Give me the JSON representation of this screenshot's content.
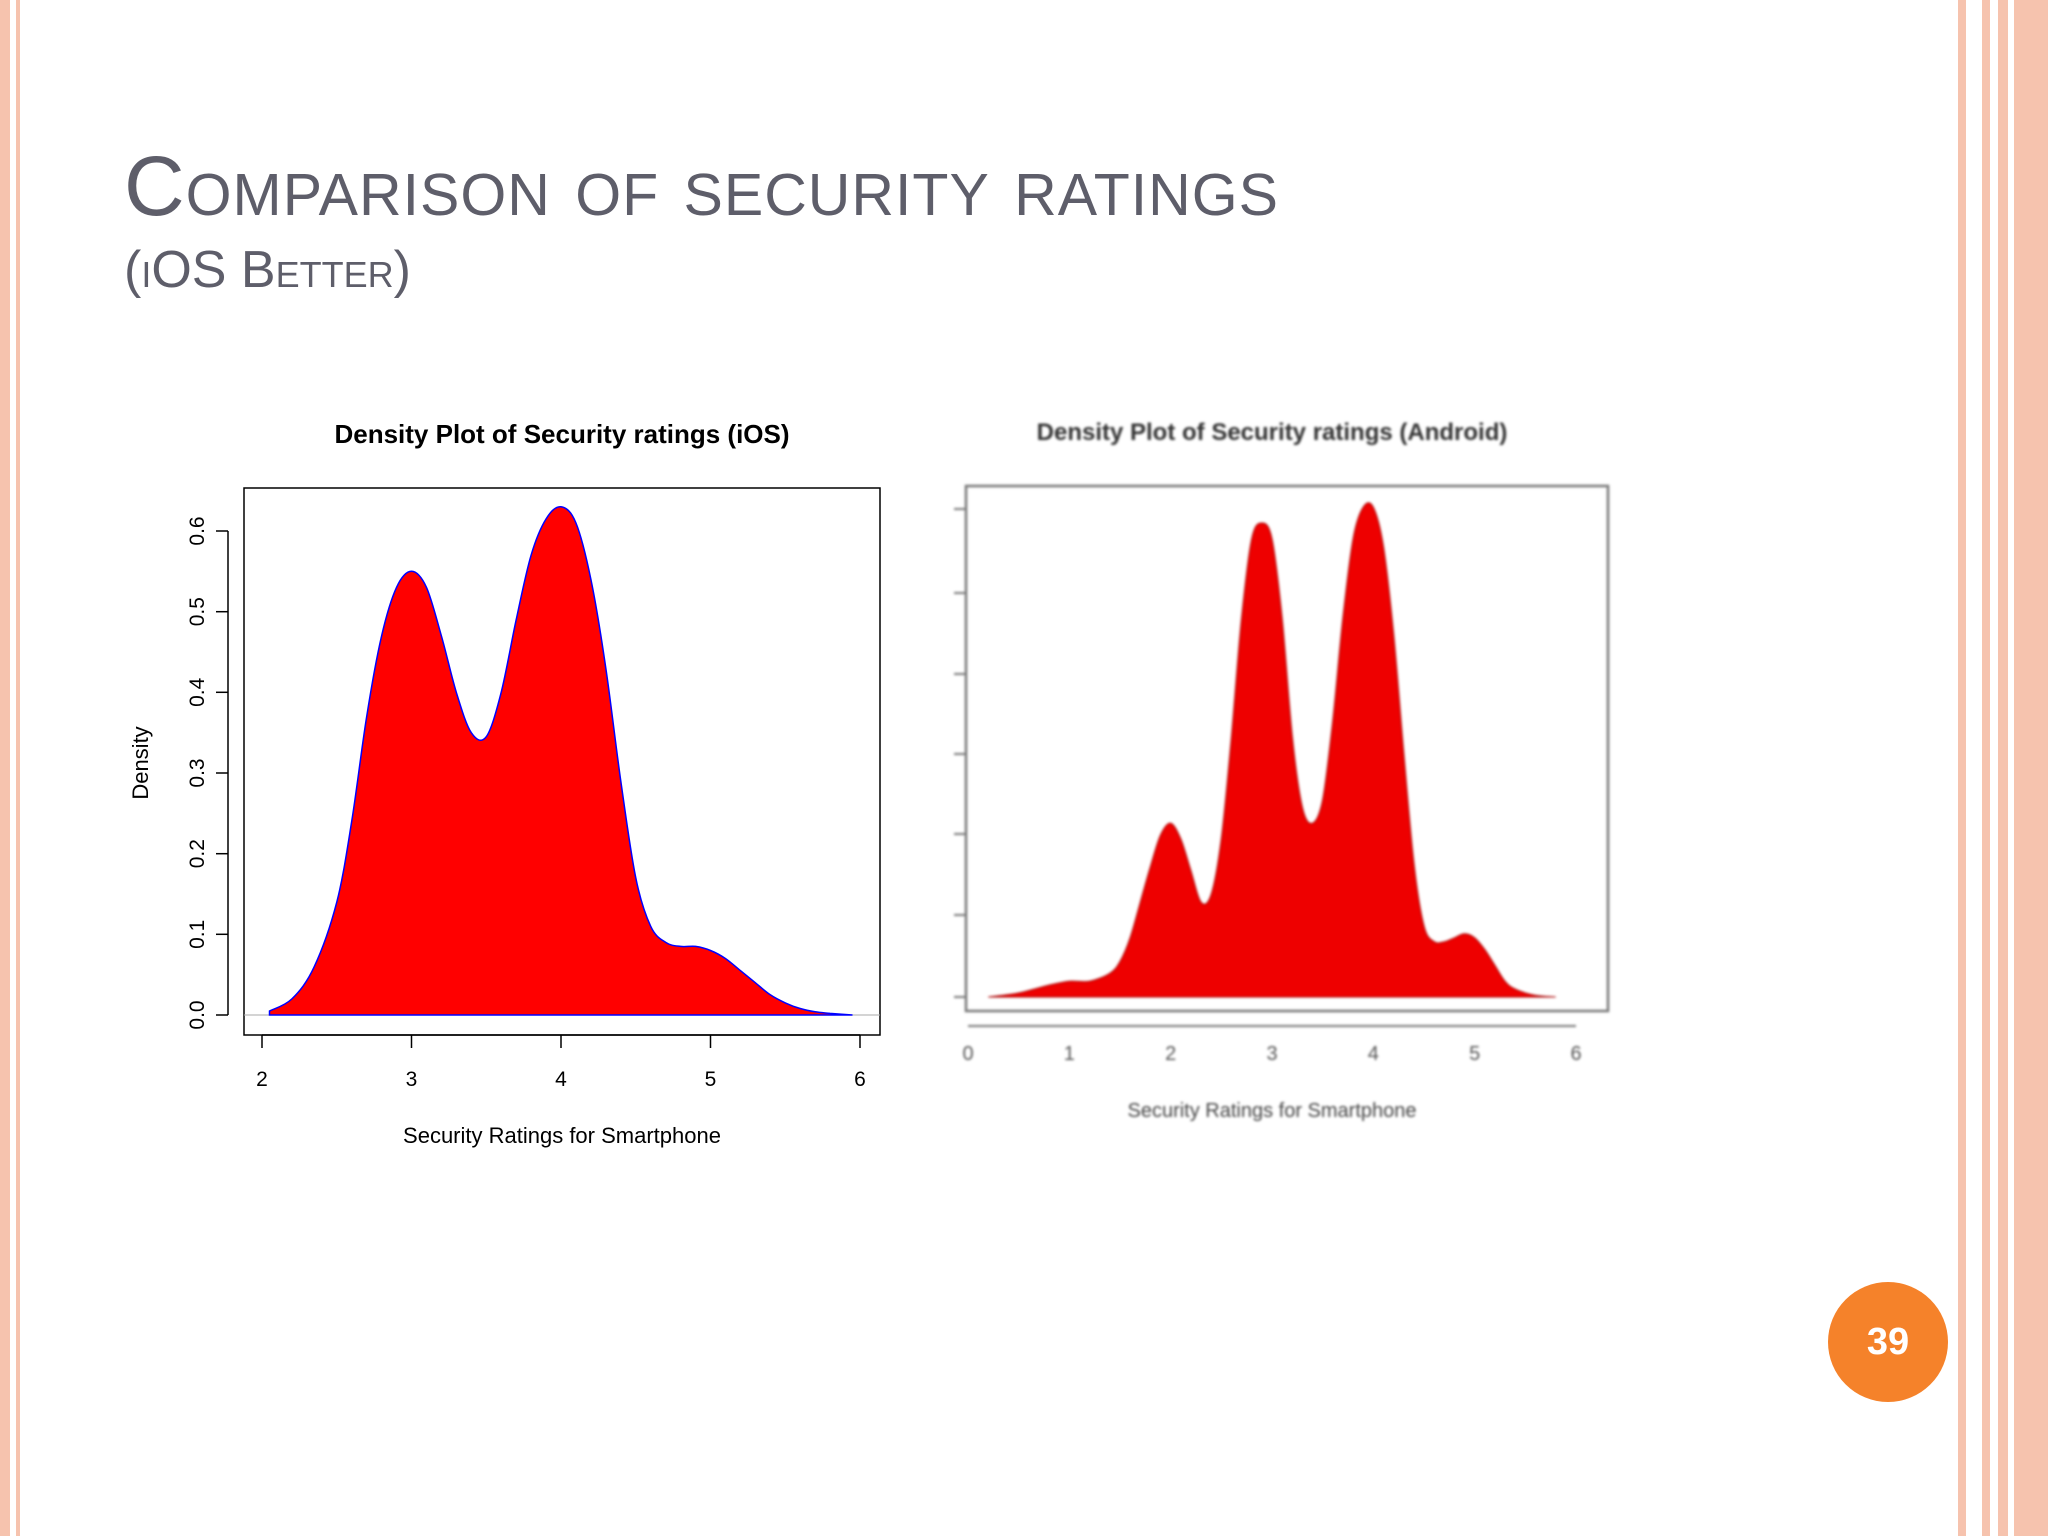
{
  "slide": {
    "title": "Comparison of security ratings",
    "subtitle": "(iOS Better)",
    "page_number": "39"
  },
  "colors": {
    "frame": "#f6c3ae",
    "title_text": "#5e5e6a",
    "badge": "#f5822a",
    "fill": "#ff0000",
    "outline": "#0000ff"
  },
  "chart_data": [
    {
      "type": "area",
      "title": "Density Plot of Security ratings (iOS)",
      "xlabel": "Security Ratings for Smartphone",
      "ylabel": "Density",
      "xlim": [
        2,
        6
      ],
      "ylim": [
        0,
        0.6
      ],
      "xticks": [
        "2",
        "3",
        "4",
        "5",
        "6"
      ],
      "yticks": [
        "0.0",
        "0.1",
        "0.2",
        "0.3",
        "0.4",
        "0.5",
        "0.6"
      ],
      "x": [
        2.05,
        2.2,
        2.35,
        2.5,
        2.6,
        2.7,
        2.8,
        2.9,
        3.0,
        3.1,
        3.2,
        3.3,
        3.4,
        3.5,
        3.6,
        3.7,
        3.8,
        3.9,
        4.0,
        4.1,
        4.2,
        4.3,
        4.4,
        4.5,
        4.6,
        4.7,
        4.8,
        4.9,
        5.0,
        5.1,
        5.2,
        5.3,
        5.4,
        5.5,
        5.6,
        5.7,
        5.8,
        5.95
      ],
      "y": [
        0.005,
        0.02,
        0.06,
        0.14,
        0.24,
        0.37,
        0.47,
        0.53,
        0.55,
        0.53,
        0.47,
        0.4,
        0.35,
        0.345,
        0.4,
        0.49,
        0.57,
        0.615,
        0.63,
        0.61,
        0.54,
        0.43,
        0.29,
        0.17,
        0.11,
        0.09,
        0.085,
        0.085,
        0.08,
        0.07,
        0.055,
        0.04,
        0.025,
        0.015,
        0.008,
        0.004,
        0.002,
        0.0
      ]
    },
    {
      "type": "area",
      "title": "Density Plot of Security ratings (Android)",
      "xlabel": "Security Ratings for Smartphone",
      "xlim": [
        0,
        6
      ],
      "xticks": [
        "0",
        "1",
        "2",
        "3",
        "4",
        "5",
        "6"
      ],
      "x": [
        0.2,
        0.5,
        0.8,
        1.0,
        1.2,
        1.4,
        1.5,
        1.6,
        1.7,
        1.8,
        1.9,
        2.0,
        2.1,
        2.2,
        2.3,
        2.4,
        2.5,
        2.6,
        2.7,
        2.8,
        2.9,
        3.0,
        3.1,
        3.2,
        3.3,
        3.4,
        3.5,
        3.6,
        3.7,
        3.8,
        3.9,
        4.0,
        4.1,
        4.2,
        4.3,
        4.4,
        4.5,
        4.6,
        4.7,
        4.8,
        4.9,
        5.0,
        5.1,
        5.2,
        5.3,
        5.4,
        5.6,
        5.8
      ],
      "y": [
        0.0,
        0.005,
        0.015,
        0.02,
        0.02,
        0.03,
        0.045,
        0.075,
        0.12,
        0.165,
        0.205,
        0.22,
        0.2,
        0.16,
        0.12,
        0.13,
        0.2,
        0.33,
        0.48,
        0.58,
        0.6,
        0.58,
        0.48,
        0.33,
        0.24,
        0.22,
        0.25,
        0.35,
        0.48,
        0.58,
        0.62,
        0.62,
        0.57,
        0.46,
        0.31,
        0.17,
        0.09,
        0.07,
        0.07,
        0.075,
        0.08,
        0.075,
        0.06,
        0.04,
        0.02,
        0.01,
        0.002,
        0.0
      ]
    }
  ]
}
